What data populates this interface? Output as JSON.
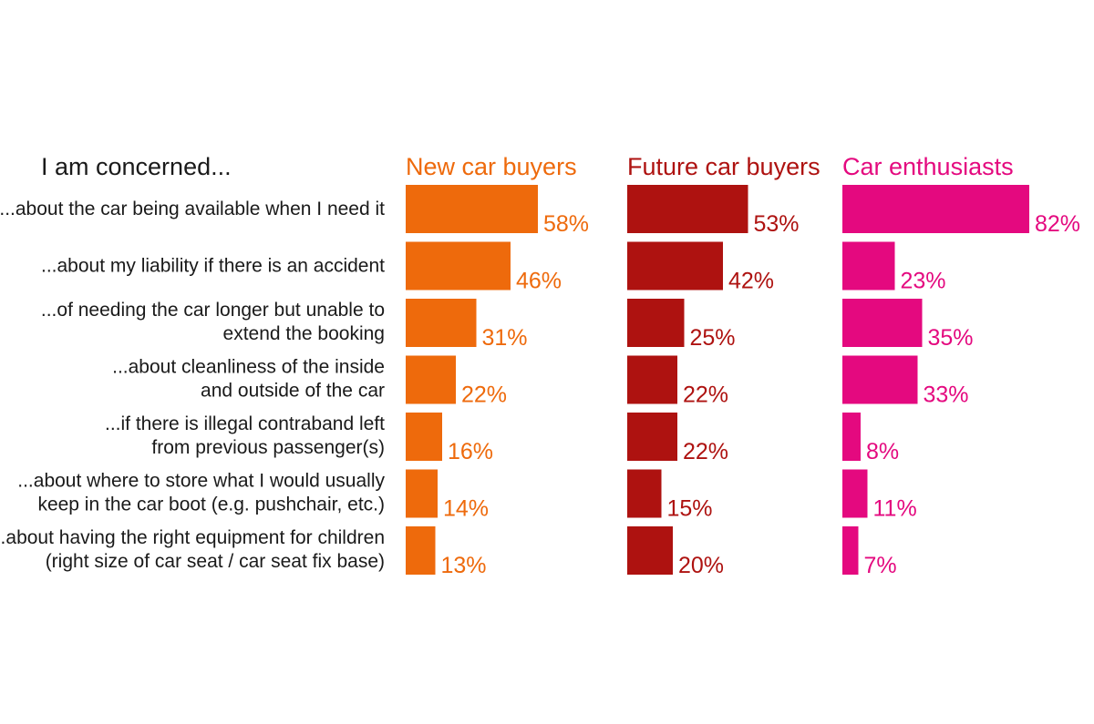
{
  "chart_data": {
    "type": "bar",
    "orientation": "horizontal",
    "title": "I am concerned...",
    "categories": [
      [
        "...about the car being available when I need it"
      ],
      [
        "...about my liability if there is an accident"
      ],
      [
        "...of needing the car longer but unable to",
        "extend the booking"
      ],
      [
        "...about cleanliness of the inside",
        "and outside of the car"
      ],
      [
        "...if there is illegal contraband left",
        "from previous passenger(s)"
      ],
      [
        "...about where to store what I would usually",
        "keep in the car boot (e.g. pushchair, etc.)"
      ],
      [
        "...about having the right equipment for children",
        "(right size of car seat / car seat fix base)"
      ]
    ],
    "series": [
      {
        "name": "New car buyers",
        "color": "#EE6A0C",
        "values": [
          58,
          46,
          31,
          22,
          16,
          14,
          13
        ]
      },
      {
        "name": "Future car buyers",
        "color": "#AE1210",
        "values": [
          53,
          42,
          25,
          22,
          22,
          15,
          20
        ]
      },
      {
        "name": "Car enthusiasts",
        "color": "#E4097F",
        "values": [
          82,
          23,
          35,
          33,
          8,
          11,
          7
        ]
      }
    ],
    "value_suffix": "%",
    "xlim": [
      0,
      100
    ],
    "grid": false,
    "legend": "none"
  }
}
